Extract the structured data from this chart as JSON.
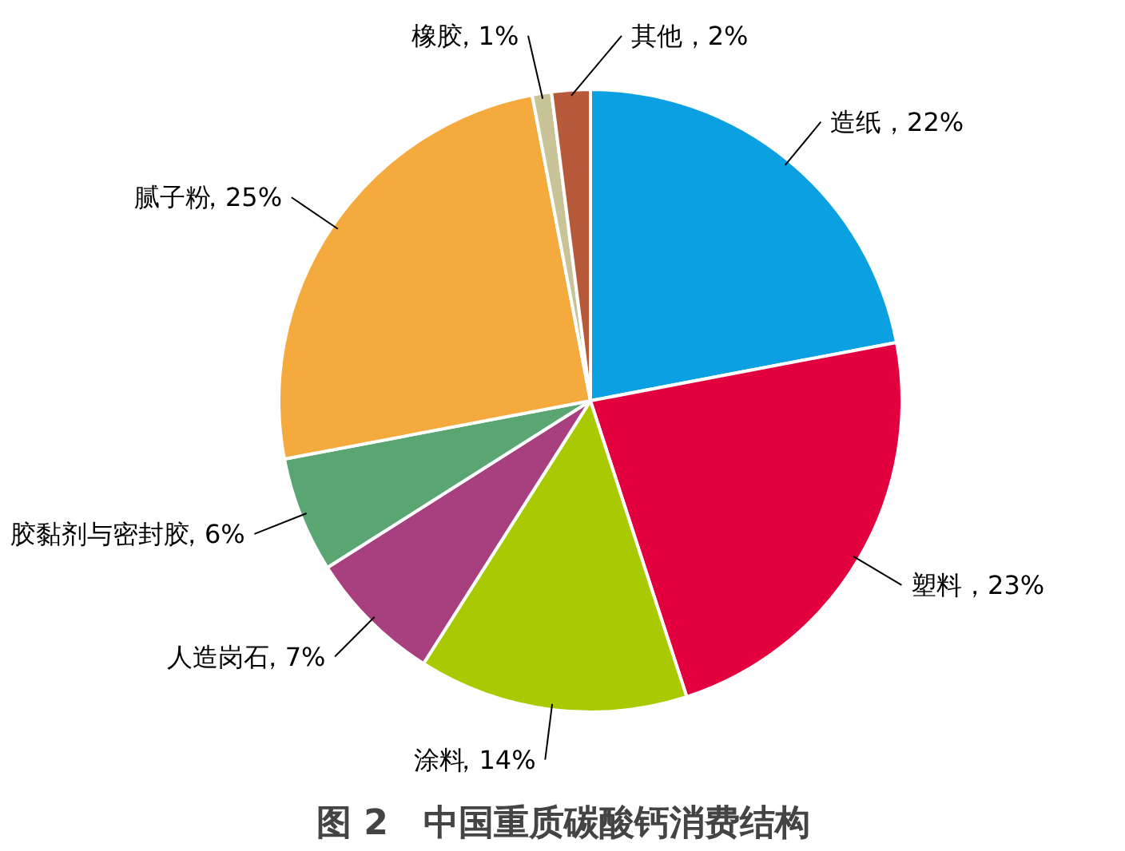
{
  "chart_data": {
    "type": "pie",
    "title": "图 2　中国重质碳酸钙消费结构",
    "categories": [
      "造纸",
      "塑料",
      "涂料",
      "人造岗石",
      "胶黏剂与密封胶",
      "腻子粉",
      "橡胶",
      "其他"
    ],
    "values": [
      22,
      23,
      14,
      7,
      6,
      25,
      1,
      2
    ],
    "colors": [
      "#0aa0e2",
      "#e3003f",
      "#a9c900",
      "#a8407f",
      "#5aa673",
      "#f4aa3c",
      "#c9c497",
      "#b65a3a"
    ],
    "value_labels": [
      "，22%",
      "，23%",
      "，14%",
      "，7%",
      "，6%",
      "，25%",
      "，1%",
      "，2%"
    ]
  }
}
